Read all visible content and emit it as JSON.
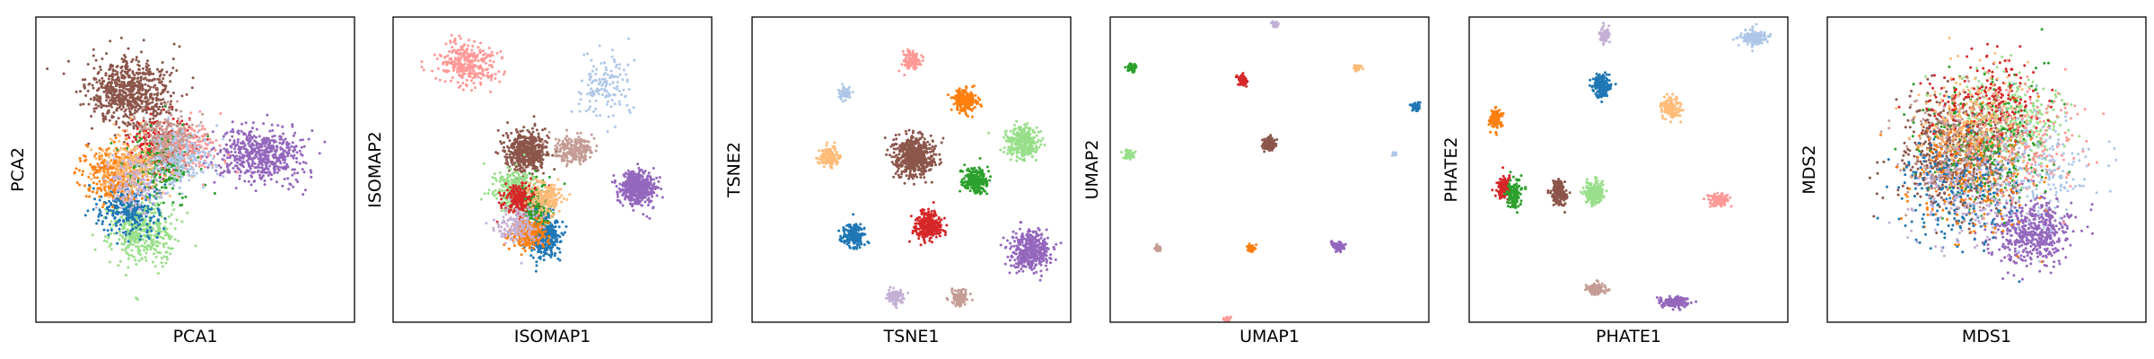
{
  "chart_data": [
    {
      "type": "scatter",
      "xlabel": "PCA1",
      "ylabel": "PCA2",
      "xlim": [
        -6,
        6
      ],
      "ylim": [
        -6,
        6
      ],
      "clusters": [
        {
          "color": "#8c564b",
          "center": [
            -2.5,
            3.0
          ],
          "spread": [
            1.4,
            1.2
          ],
          "n": 700
        },
        {
          "color": "#9467bd",
          "center": [
            2.5,
            0.6
          ],
          "spread": [
            1.4,
            1.0
          ],
          "n": 550
        },
        {
          "color": "#98df8a",
          "center": [
            -2.0,
            -2.4
          ],
          "spread": [
            1.1,
            1.2
          ],
          "n": 420
        },
        {
          "color": "#1f77b4",
          "center": [
            -2.5,
            -1.5
          ],
          "spread": [
            1.0,
            0.9
          ],
          "n": 300
        },
        {
          "color": "#ff7f0e",
          "center": [
            -3.0,
            -0.2
          ],
          "spread": [
            1.1,
            0.9
          ],
          "n": 350
        },
        {
          "color": "#d62728",
          "center": [
            -1.3,
            1.0
          ],
          "spread": [
            1.1,
            1.0
          ],
          "n": 250
        },
        {
          "color": "#2ca02c",
          "center": [
            -1.3,
            0.2
          ],
          "spread": [
            1.1,
            1.1
          ],
          "n": 250
        },
        {
          "color": "#ffbb78",
          "center": [
            -2.5,
            0.1
          ],
          "spread": [
            1.1,
            1.1
          ],
          "n": 250
        },
        {
          "color": "#ff9896",
          "center": [
            -0.3,
            0.8
          ],
          "spread": [
            1.0,
            0.9
          ],
          "n": 220
        },
        {
          "color": "#c49c94",
          "center": [
            -1.0,
            1.3
          ],
          "spread": [
            1.0,
            1.0
          ],
          "n": 200
        },
        {
          "color": "#aec7e8",
          "center": [
            -0.5,
            0.4
          ],
          "spread": [
            1.0,
            1.0
          ],
          "n": 180
        },
        {
          "color": "#c5b0d5",
          "center": [
            -2.2,
            -0.6
          ],
          "spread": [
            1.0,
            1.0
          ],
          "n": 150
        }
      ]
    },
    {
      "type": "scatter",
      "xlabel": "ISOMAP1",
      "ylabel": "ISOMAP2",
      "xlim": [
        -6,
        6
      ],
      "ylim": [
        -6,
        6
      ],
      "clusters": [
        {
          "color": "#ff9896",
          "center": [
            -3.2,
            4.2
          ],
          "spread": [
            1.0,
            0.8
          ],
          "n": 300
        },
        {
          "color": "#aec7e8",
          "center": [
            2.0,
            3.3
          ],
          "spread": [
            1.0,
            1.2
          ],
          "n": 140
        },
        {
          "color": "#8c564b",
          "center": [
            -1.0,
            0.7
          ],
          "spread": [
            0.7,
            0.7
          ],
          "n": 520
        },
        {
          "color": "#c49c94",
          "center": [
            0.8,
            0.8
          ],
          "spread": [
            0.7,
            0.5
          ],
          "n": 220
        },
        {
          "color": "#9467bd",
          "center": [
            3.2,
            -0.7
          ],
          "spread": [
            0.6,
            0.6
          ],
          "n": 500
        },
        {
          "color": "#98df8a",
          "center": [
            -1.4,
            -0.8
          ],
          "spread": [
            0.7,
            0.7
          ],
          "n": 320
        },
        {
          "color": "#d62728",
          "center": [
            -1.2,
            -1.2
          ],
          "spread": [
            0.6,
            0.6
          ],
          "n": 260
        },
        {
          "color": "#2ca02c",
          "center": [
            -0.6,
            -1.6
          ],
          "spread": [
            0.5,
            0.9
          ],
          "n": 200
        },
        {
          "color": "#1f77b4",
          "center": [
            -0.3,
            -2.7
          ],
          "spread": [
            0.5,
            0.7
          ],
          "n": 300
        },
        {
          "color": "#ff7f0e",
          "center": [
            -0.9,
            -2.5
          ],
          "spread": [
            0.6,
            0.5
          ],
          "n": 300
        },
        {
          "color": "#ffbb78",
          "center": [
            -0.2,
            -1.1
          ],
          "spread": [
            0.5,
            0.6
          ],
          "n": 180
        },
        {
          "color": "#c5b0d5",
          "center": [
            -1.4,
            -2.2
          ],
          "spread": [
            0.7,
            0.6
          ],
          "n": 150
        }
      ]
    },
    {
      "type": "scatter",
      "xlabel": "TSNE1",
      "ylabel": "TSNE2",
      "xlim": [
        -6,
        6
      ],
      "ylim": [
        -6,
        6
      ],
      "clusters": [
        {
          "color": "#ff9896",
          "center": [
            0.0,
            4.3
          ],
          "spread": [
            0.3,
            0.3
          ],
          "n": 120
        },
        {
          "color": "#aec7e8",
          "center": [
            -2.5,
            3.0
          ],
          "spread": [
            0.2,
            0.2
          ],
          "n": 70
        },
        {
          "color": "#ff7f0e",
          "center": [
            2.0,
            2.7
          ],
          "spread": [
            0.4,
            0.4
          ],
          "n": 220
        },
        {
          "color": "#98df8a",
          "center": [
            4.2,
            1.1
          ],
          "spread": [
            0.55,
            0.55
          ],
          "n": 320
        },
        {
          "color": "#8c564b",
          "center": [
            0.1,
            0.5
          ],
          "spread": [
            0.7,
            0.7
          ],
          "n": 560
        },
        {
          "color": "#ffbb78",
          "center": [
            -3.1,
            0.5
          ],
          "spread": [
            0.35,
            0.35
          ],
          "n": 150
        },
        {
          "color": "#2ca02c",
          "center": [
            2.4,
            -0.4
          ],
          "spread": [
            0.4,
            0.45
          ],
          "n": 240
        },
        {
          "color": "#d62728",
          "center": [
            0.6,
            -2.2
          ],
          "spread": [
            0.5,
            0.5
          ],
          "n": 300
        },
        {
          "color": "#1f77b4",
          "center": [
            -2.2,
            -2.6
          ],
          "spread": [
            0.4,
            0.4
          ],
          "n": 200
        },
        {
          "color": "#9467bd",
          "center": [
            4.5,
            -3.2
          ],
          "spread": [
            0.65,
            0.65
          ],
          "n": 420
        },
        {
          "color": "#c5b0d5",
          "center": [
            -0.6,
            -5.0
          ],
          "spread": [
            0.3,
            0.3
          ],
          "n": 100
        },
        {
          "color": "#c49c94",
          "center": [
            1.8,
            -5.0
          ],
          "spread": [
            0.3,
            0.3
          ],
          "n": 100
        }
      ]
    },
    {
      "type": "scatter",
      "xlabel": "UMAP1",
      "ylabel": "UMAP2",
      "xlim": [
        -6,
        6
      ],
      "ylim": [
        -6,
        6
      ],
      "clusters": [
        {
          "color": "#c5b0d5",
          "center": [
            0.2,
            5.7
          ],
          "spread": [
            0.12,
            0.12
          ],
          "n": 40
        },
        {
          "color": "#2ca02c",
          "center": [
            -5.2,
            4.0
          ],
          "spread": [
            0.15,
            0.15
          ],
          "n": 60
        },
        {
          "color": "#d62728",
          "center": [
            -1.0,
            3.5
          ],
          "spread": [
            0.17,
            0.17
          ],
          "n": 70
        },
        {
          "color": "#ffbb78",
          "center": [
            3.3,
            4.0
          ],
          "spread": [
            0.13,
            0.13
          ],
          "n": 40
        },
        {
          "color": "#1f77b4",
          "center": [
            5.5,
            2.5
          ],
          "spread": [
            0.14,
            0.14
          ],
          "n": 45
        },
        {
          "color": "#8c564b",
          "center": [
            0.0,
            1.0
          ],
          "spread": [
            0.25,
            0.25
          ],
          "n": 110
        },
        {
          "color": "#98df8a",
          "center": [
            -5.3,
            0.6
          ],
          "spread": [
            0.17,
            0.17
          ],
          "n": 60
        },
        {
          "color": "#aec7e8",
          "center": [
            4.7,
            0.6
          ],
          "spread": [
            0.07,
            0.07
          ],
          "n": 15
        },
        {
          "color": "#c49c94",
          "center": [
            -4.2,
            -3.1
          ],
          "spread": [
            0.1,
            0.1
          ],
          "n": 25
        },
        {
          "color": "#ff7f0e",
          "center": [
            -0.7,
            -3.1
          ],
          "spread": [
            0.13,
            0.13
          ],
          "n": 40
        },
        {
          "color": "#9467bd",
          "center": [
            2.6,
            -3.0
          ],
          "spread": [
            0.2,
            0.17
          ],
          "n": 80
        },
        {
          "color": "#ff9896",
          "center": [
            -1.6,
            -5.9
          ],
          "spread": [
            0.12,
            0.1
          ],
          "n": 35
        }
      ]
    },
    {
      "type": "scatter",
      "xlabel": "PHATE1",
      "ylabel": "PHATE2",
      "xlim": [
        -6,
        6
      ],
      "ylim": [
        -6,
        6
      ],
      "clusters": [
        {
          "color": "#aec7e8",
          "center": [
            4.7,
            5.2
          ],
          "spread": [
            0.5,
            0.25
          ],
          "n": 160
        },
        {
          "color": "#c5b0d5",
          "center": [
            -0.9,
            5.3
          ],
          "spread": [
            0.2,
            0.3
          ],
          "n": 80
        },
        {
          "color": "#1f77b4",
          "center": [
            -1.0,
            3.3
          ],
          "spread": [
            0.3,
            0.4
          ],
          "n": 200
        },
        {
          "color": "#ffbb78",
          "center": [
            1.6,
            2.4
          ],
          "spread": [
            0.3,
            0.4
          ],
          "n": 150
        },
        {
          "color": "#ff7f0e",
          "center": [
            -5.0,
            2.0
          ],
          "spread": [
            0.2,
            0.35
          ],
          "n": 120
        },
        {
          "color": "#d62728",
          "center": [
            -4.7,
            -0.7
          ],
          "spread": [
            0.2,
            0.35
          ],
          "n": 160
        },
        {
          "color": "#2ca02c",
          "center": [
            -4.3,
            -1.0
          ],
          "spread": [
            0.25,
            0.5
          ],
          "n": 140
        },
        {
          "color": "#8c564b",
          "center": [
            -2.6,
            -0.9
          ],
          "spread": [
            0.25,
            0.45
          ],
          "n": 200
        },
        {
          "color": "#98df8a",
          "center": [
            -1.3,
            -0.9
          ],
          "spread": [
            0.3,
            0.4
          ],
          "n": 220
        },
        {
          "color": "#ff9896",
          "center": [
            3.4,
            -1.2
          ],
          "spread": [
            0.35,
            0.22
          ],
          "n": 140
        },
        {
          "color": "#c49c94",
          "center": [
            -1.2,
            -4.7
          ],
          "spread": [
            0.35,
            0.2
          ],
          "n": 120
        },
        {
          "color": "#9467bd",
          "center": [
            1.8,
            -5.2
          ],
          "spread": [
            0.45,
            0.2
          ],
          "n": 170
        }
      ]
    },
    {
      "type": "scatter",
      "xlabel": "MDS1",
      "ylabel": "MDS2",
      "xlim": [
        -6,
        6
      ],
      "ylim": [
        -6,
        6
      ],
      "clusters": [
        {
          "color": "#8c564b",
          "center": [
            -1.2,
            0.6
          ],
          "spread": [
            2.0,
            2.0
          ],
          "n": 650
        },
        {
          "color": "#9467bd",
          "center": [
            1.7,
            -2.4
          ],
          "spread": [
            1.4,
            1.2
          ],
          "n": 520
        },
        {
          "color": "#98df8a",
          "center": [
            1.0,
            2.0
          ],
          "spread": [
            2.0,
            1.6
          ],
          "n": 320
        },
        {
          "color": "#2ca02c",
          "center": [
            0.0,
            1.0
          ],
          "spread": [
            2.2,
            2.2
          ],
          "n": 280
        },
        {
          "color": "#ff7f0e",
          "center": [
            -0.5,
            -0.2
          ],
          "spread": [
            2.2,
            2.2
          ],
          "n": 280
        },
        {
          "color": "#1f77b4",
          "center": [
            -1.0,
            -0.8
          ],
          "spread": [
            2.0,
            2.0
          ],
          "n": 250
        },
        {
          "color": "#d62728",
          "center": [
            0.0,
            2.6
          ],
          "spread": [
            1.8,
            1.6
          ],
          "n": 220
        },
        {
          "color": "#ff9896",
          "center": [
            1.5,
            1.0
          ],
          "spread": [
            2.0,
            2.0
          ],
          "n": 200
        },
        {
          "color": "#c49c94",
          "center": [
            -1.0,
            1.0
          ],
          "spread": [
            2.0,
            2.0
          ],
          "n": 200
        },
        {
          "color": "#aec7e8",
          "center": [
            2.0,
            0.0
          ],
          "spread": [
            2.0,
            2.0
          ],
          "n": 180
        },
        {
          "color": "#ffbb78",
          "center": [
            -0.5,
            2.0
          ],
          "spread": [
            2.0,
            1.8
          ],
          "n": 200
        },
        {
          "color": "#c5b0d5",
          "center": [
            -1.0,
            -1.0
          ],
          "spread": [
            2.0,
            2.0
          ],
          "n": 160
        }
      ]
    }
  ]
}
